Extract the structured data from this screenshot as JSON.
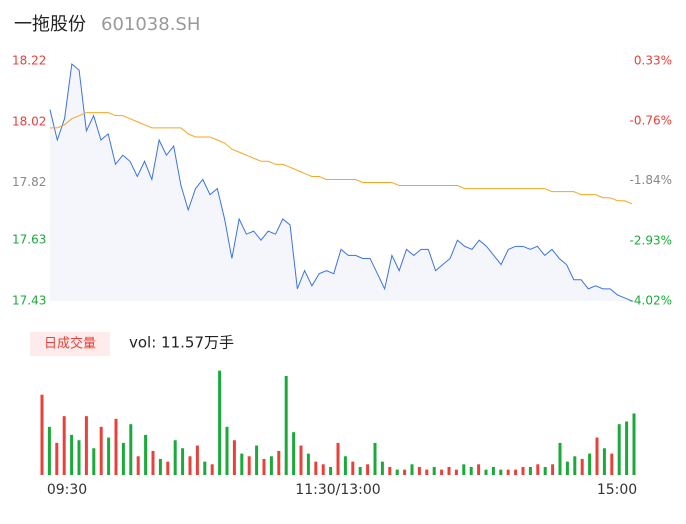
{
  "chart_data": [
    {
      "type": "line",
      "title": "一拖股份",
      "subtitle": "601038.SH",
      "ylim": [
        17.43,
        18.22
      ],
      "yticks": [
        18.22,
        18.02,
        17.82,
        17.63,
        17.43
      ],
      "y2lim": [
        -4.02,
        0.33
      ],
      "y2ticks": [
        {
          "value": 0.33,
          "label": "0.33%"
        },
        {
          "value": -0.76,
          "label": "-0.76%"
        },
        {
          "value": -1.84,
          "label": "-1.84%"
        },
        {
          "value": -2.93,
          "label": "-2.93%"
        },
        {
          "value": -4.02,
          "label": "-4.02%"
        }
      ],
      "series": [
        {
          "name": "price",
          "color": "#3b73e0",
          "values": [
            18.06,
            17.96,
            18.03,
            18.21,
            18.19,
            17.99,
            18.04,
            17.96,
            17.98,
            17.88,
            17.91,
            17.89,
            17.84,
            17.89,
            17.83,
            17.96,
            17.91,
            17.94,
            17.81,
            17.73,
            17.8,
            17.83,
            17.78,
            17.8,
            17.7,
            17.57,
            17.7,
            17.65,
            17.66,
            17.63,
            17.66,
            17.65,
            17.7,
            17.68,
            17.47,
            17.53,
            17.48,
            17.52,
            17.53,
            17.52,
            17.6,
            17.58,
            17.58,
            17.57,
            17.57,
            17.52,
            17.47,
            17.58,
            17.53,
            17.6,
            17.58,
            17.6,
            17.6,
            17.53,
            17.55,
            17.57,
            17.63,
            17.61,
            17.6,
            17.63,
            17.61,
            17.58,
            17.55,
            17.6,
            17.61,
            17.61,
            17.6,
            17.61,
            17.58,
            17.6,
            17.57,
            17.55,
            17.5,
            17.5,
            17.47,
            17.48,
            17.47,
            17.47,
            17.45,
            17.44,
            17.43
          ]
        },
        {
          "name": "average",
          "color": "#f5a623",
          "values": [
            18.0,
            18.0,
            18.01,
            18.03,
            18.04,
            18.05,
            18.05,
            18.05,
            18.05,
            18.04,
            18.04,
            18.03,
            18.02,
            18.01,
            18.0,
            18.0,
            18.0,
            18.0,
            18.0,
            17.98,
            17.97,
            17.97,
            17.97,
            17.96,
            17.95,
            17.93,
            17.92,
            17.91,
            17.9,
            17.89,
            17.89,
            17.88,
            17.88,
            17.87,
            17.86,
            17.85,
            17.84,
            17.84,
            17.83,
            17.83,
            17.83,
            17.83,
            17.83,
            17.82,
            17.82,
            17.82,
            17.82,
            17.82,
            17.81,
            17.81,
            17.81,
            17.81,
            17.81,
            17.81,
            17.81,
            17.81,
            17.81,
            17.8,
            17.8,
            17.8,
            17.8,
            17.8,
            17.8,
            17.8,
            17.8,
            17.8,
            17.8,
            17.8,
            17.8,
            17.79,
            17.79,
            17.79,
            17.79,
            17.78,
            17.78,
            17.78,
            17.77,
            17.77,
            17.76,
            17.76,
            17.75
          ]
        }
      ]
    },
    {
      "type": "bar",
      "title": "日成交量",
      "annotation": "vol: 11.57万手",
      "categories": [
        "09:30",
        null,
        null,
        null,
        null,
        null,
        null,
        null,
        null,
        null,
        null,
        null,
        null,
        null,
        null,
        null,
        null,
        null,
        null,
        null,
        null,
        null,
        null,
        null,
        null,
        null,
        null,
        null,
        null,
        null,
        null,
        null,
        null,
        null,
        null,
        null,
        null,
        null,
        null,
        null,
        "11:30/13:00",
        null,
        null,
        null,
        null,
        null,
        null,
        null,
        null,
        null,
        null,
        null,
        null,
        null,
        null,
        null,
        null,
        null,
        null,
        null,
        null,
        null,
        null,
        null,
        null,
        null,
        null,
        null,
        null,
        null,
        null,
        null,
        null,
        null,
        null,
        null,
        null,
        null,
        null,
        null,
        "15:00"
      ],
      "ylim": [
        0,
        4000
      ],
      "up_color": "#e8413b",
      "down_color": "#1aaa3a",
      "values": [
        3000,
        1800,
        1200,
        2200,
        1500,
        1300,
        2200,
        1000,
        1800,
        1400,
        2100,
        1200,
        1900,
        700,
        1500,
        900,
        600,
        500,
        1300,
        1000,
        700,
        1100,
        500,
        400,
        3900,
        1800,
        1300,
        800,
        700,
        1100,
        600,
        700,
        900,
        3700,
        1600,
        1100,
        800,
        500,
        400,
        300,
        1200,
        700,
        500,
        300,
        400,
        1200,
        500,
        300,
        200,
        200,
        400,
        300,
        200,
        300,
        200,
        300,
        200,
        400,
        300,
        400,
        200,
        300,
        200,
        200,
        200,
        300,
        300,
        400,
        300,
        400,
        1200,
        500,
        700,
        600,
        800,
        1400,
        1000,
        800,
        1900,
        2000,
        2300
      ]
    }
  ]
}
